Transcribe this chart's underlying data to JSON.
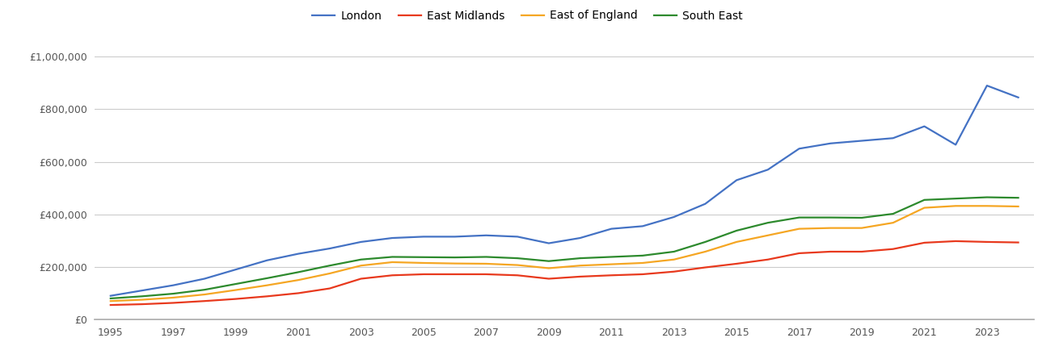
{
  "years": [
    1995,
    1996,
    1997,
    1998,
    1999,
    2000,
    2001,
    2002,
    2003,
    2004,
    2005,
    2006,
    2007,
    2008,
    2009,
    2010,
    2011,
    2012,
    2013,
    2014,
    2015,
    2016,
    2017,
    2018,
    2019,
    2020,
    2021,
    2022,
    2023,
    2024
  ],
  "london": [
    90000,
    110000,
    130000,
    155000,
    190000,
    225000,
    250000,
    270000,
    295000,
    310000,
    315000,
    315000,
    320000,
    315000,
    290000,
    310000,
    345000,
    355000,
    390000,
    440000,
    530000,
    570000,
    650000,
    670000,
    680000,
    690000,
    735000,
    665000,
    890000,
    845000
  ],
  "east_midlands": [
    55000,
    58000,
    63000,
    70000,
    78000,
    88000,
    100000,
    118000,
    155000,
    168000,
    172000,
    172000,
    172000,
    168000,
    155000,
    163000,
    168000,
    172000,
    182000,
    198000,
    212000,
    228000,
    252000,
    258000,
    258000,
    268000,
    292000,
    298000,
    295000,
    293000
  ],
  "east_of_england": [
    70000,
    75000,
    83000,
    95000,
    112000,
    130000,
    150000,
    175000,
    205000,
    218000,
    215000,
    213000,
    212000,
    207000,
    195000,
    205000,
    210000,
    215000,
    228000,
    258000,
    295000,
    320000,
    345000,
    348000,
    348000,
    368000,
    425000,
    432000,
    432000,
    430000
  ],
  "south_east": [
    80000,
    88000,
    98000,
    113000,
    135000,
    157000,
    180000,
    205000,
    228000,
    238000,
    237000,
    236000,
    238000,
    233000,
    222000,
    233000,
    238000,
    243000,
    258000,
    295000,
    338000,
    368000,
    388000,
    388000,
    387000,
    402000,
    455000,
    460000,
    465000,
    463000
  ],
  "series_colors": {
    "london": "#4472c4",
    "east_midlands": "#e8391d",
    "east_of_england": "#f5a623",
    "south_east": "#2d8a2d"
  },
  "ylim": [
    0,
    1050000
  ],
  "yticks": [
    0,
    200000,
    400000,
    600000,
    800000,
    1000000
  ],
  "xlim": [
    1994.5,
    2024.5
  ],
  "xticks": [
    1995,
    1997,
    1999,
    2001,
    2003,
    2005,
    2007,
    2009,
    2011,
    2013,
    2015,
    2017,
    2019,
    2021,
    2023
  ],
  "background_color": "#ffffff",
  "grid_color": "#cccccc",
  "font_color": "#555555",
  "linewidth": 1.6
}
